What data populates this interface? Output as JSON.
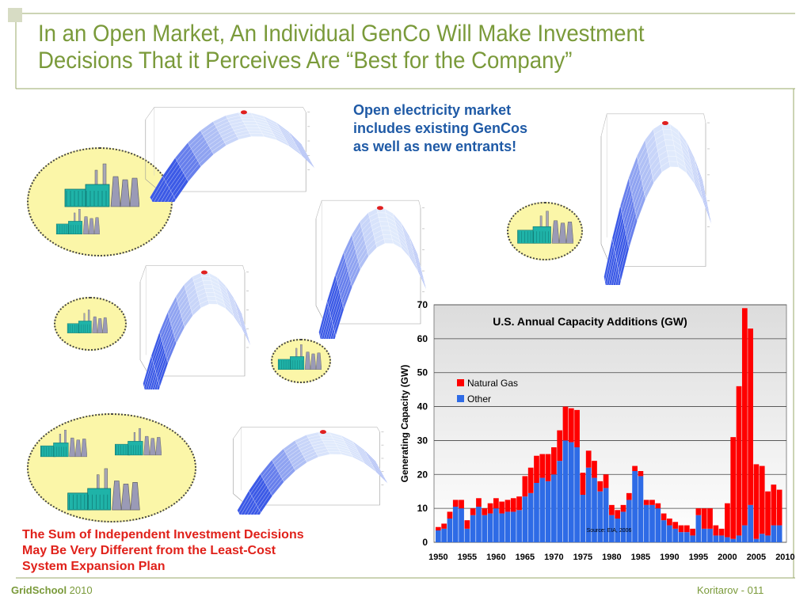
{
  "slide": {
    "title_line1": "In an Open Market, An Individual GenCo Will Make Investment",
    "title_line2": "Decisions That it Perceives Are “Best for the Company”",
    "callout_line1": "Open electricity market",
    "callout_line2": "includes existing GenCos",
    "callout_line3": "as well as new entrants!",
    "note_line1": "The Sum of Independent Investment Decisions",
    "note_line2": "May Be Very Different from the Least-Cost",
    "note_line3": "System Expansion Plan",
    "footer_brand": "GridSchool",
    "footer_year": " 2010",
    "footer_right": "Koritarov  - 011"
  },
  "colors": {
    "title": "#7a9a3a",
    "callout": "#1f5aa6",
    "note": "#e0211a",
    "ellipse_fill": "#fbf6a8",
    "natural_gas": "#ff0000",
    "other": "#2e6be6"
  },
  "icons": [
    "power-plant-icon",
    "payoff-surface-plot"
  ],
  "chart_data": {
    "type": "bar",
    "stacked": true,
    "title": "U.S. Annual Capacity Additions (GW)",
    "ylabel": "Generating Capacity (GW)",
    "xlabel": "",
    "ylim": [
      0,
      70
    ],
    "yticks": [
      0,
      10,
      20,
      30,
      40,
      50,
      60,
      70
    ],
    "xticks": [
      "1950",
      "1955",
      "1960",
      "1965",
      "1970",
      "1975",
      "1980",
      "1985",
      "1990",
      "1995",
      "2000",
      "2005",
      "2010"
    ],
    "grid": true,
    "legend_position": "upper-left",
    "source_note": "Source: EIA, 2006",
    "years": [
      1950,
      1951,
      1952,
      1953,
      1954,
      1955,
      1956,
      1957,
      1958,
      1959,
      1960,
      1961,
      1962,
      1963,
      1964,
      1965,
      1966,
      1967,
      1968,
      1969,
      1970,
      1971,
      1972,
      1973,
      1974,
      1975,
      1976,
      1977,
      1978,
      1979,
      1980,
      1981,
      1982,
      1983,
      1984,
      1985,
      1986,
      1987,
      1988,
      1989,
      1990,
      1991,
      1992,
      1993,
      1994,
      1995,
      1996,
      1997,
      1998,
      1999,
      2000,
      2001,
      2002,
      2003,
      2004,
      2005,
      2006,
      2007,
      2008,
      2009
    ],
    "series": [
      {
        "name": "Natural Gas",
        "color": "#ff0000",
        "values": [
          1,
          1.5,
          2,
          2,
          2.5,
          2.5,
          2,
          2.5,
          2,
          3,
          3,
          3.5,
          3.5,
          4,
          4,
          6,
          7.5,
          8,
          7,
          8,
          8,
          9,
          10,
          10,
          11,
          6.5,
          5,
          5,
          3,
          4,
          3,
          2.5,
          2,
          2,
          1.5,
          1.5,
          1.5,
          1.5,
          1.5,
          2,
          2,
          2,
          2,
          2,
          2,
          2,
          6,
          6,
          3,
          2,
          10,
          30,
          44,
          64,
          52,
          22,
          20,
          13,
          12,
          10.5
        ]
      },
      {
        "name": "Other",
        "color": "#2e6be6",
        "values": [
          3.5,
          4,
          7,
          10.5,
          10,
          4,
          8,
          10.5,
          8,
          8.5,
          10,
          8.5,
          9,
          9,
          9.5,
          13.5,
          14.5,
          17.5,
          19,
          18,
          20,
          24,
          30,
          29.5,
          28,
          14,
          22,
          19,
          15,
          16,
          8,
          7,
          9,
          12.5,
          21,
          19.5,
          11,
          11,
          10,
          6.5,
          5,
          4,
          3,
          3,
          2,
          8,
          4,
          4,
          2,
          2,
          1.5,
          1,
          2,
          5,
          11,
          1,
          2.5,
          2,
          5,
          5
        ]
      }
    ]
  }
}
